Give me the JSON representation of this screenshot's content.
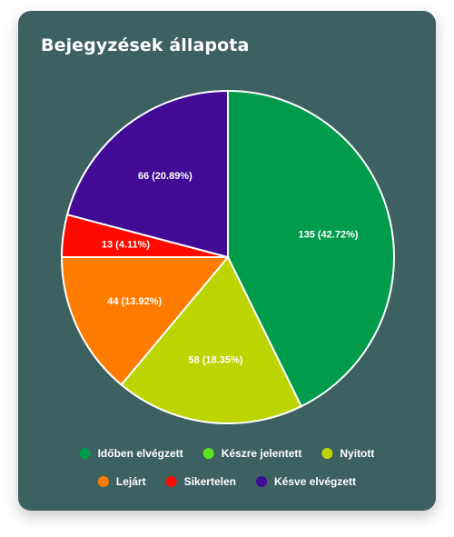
{
  "chart_data": {
    "type": "pie",
    "title": "Bejegyzések állapota",
    "slices": [
      {
        "label": "Időben elvégzett",
        "value": 135,
        "text": "135 (42.72%)",
        "color": "#009b4b"
      },
      {
        "label": "Készre jelentett",
        "value": 0,
        "text": "",
        "color": "#5ce41c"
      },
      {
        "label": "Nyitott",
        "value": 58,
        "text": "58 (18.35%)",
        "color": "#bcd400"
      },
      {
        "label": "Lejárt",
        "value": 44,
        "text": "44 (13.92%)",
        "color": "#ff7c00"
      },
      {
        "label": "Sikertelen",
        "value": 13,
        "text": "13 (4.11%)",
        "color": "#ff0a00"
      },
      {
        "label": "Késve elvégzett",
        "value": 66,
        "text": "66 (20.89%)",
        "color": "#410b95"
      }
    ],
    "legend_position": "bottom"
  }
}
